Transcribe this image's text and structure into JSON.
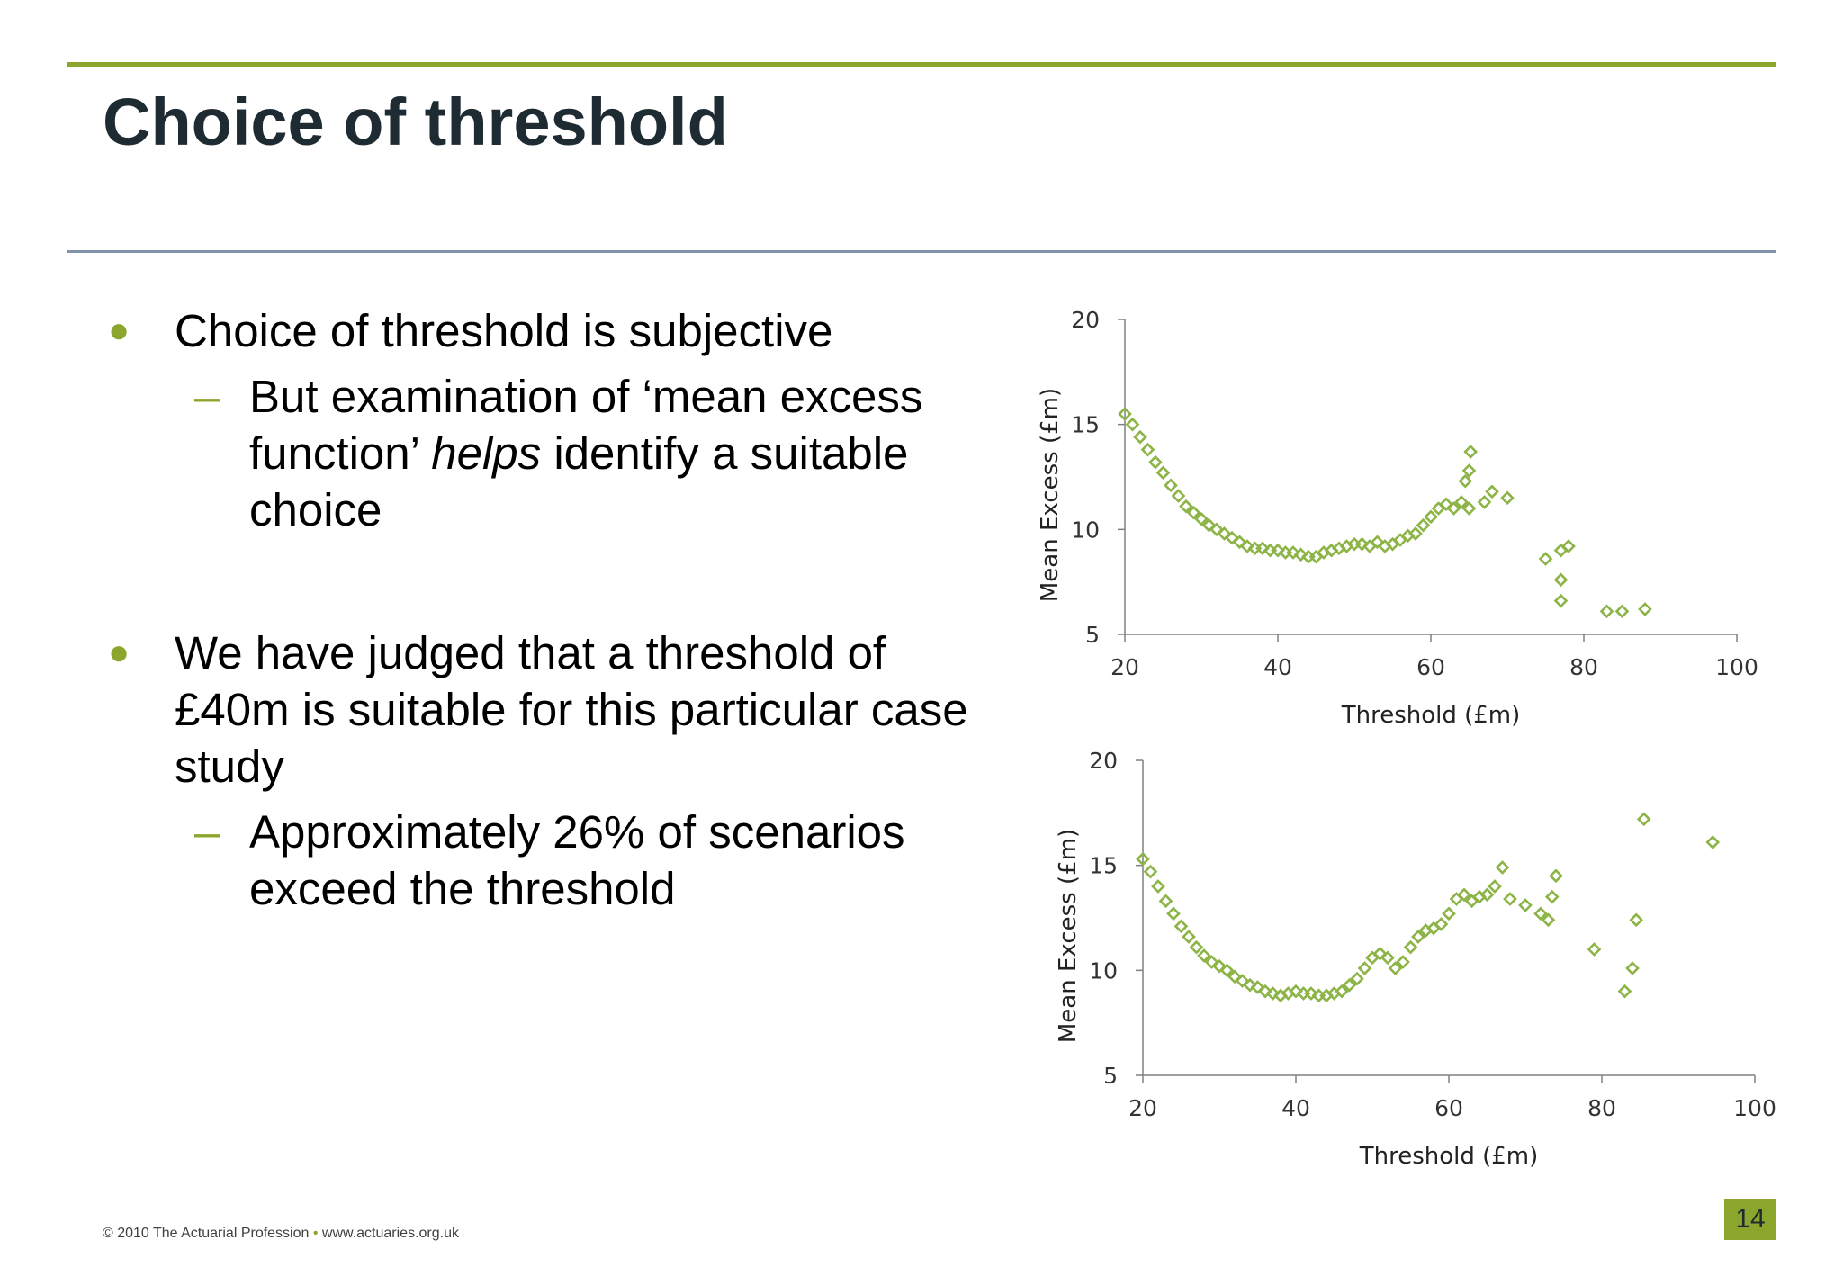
{
  "slide": {
    "title": "Choice of threshold",
    "bullets": [
      {
        "text": "Choice of threshold is subjective",
        "sub_parts": [
          "But examination of ‘mean excess function’ ",
          "helps",
          " identify a suitable choice"
        ]
      },
      {
        "text": "We have judged that a threshold of £40m is suitable for this particular case study",
        "sub": "Approximately 26% of scenarios exceed the threshold"
      }
    ],
    "footer_left": "© 2010 The Actuarial Profession",
    "footer_sep": "•",
    "footer_right": "www.actuaries.org.uk",
    "page_number": "14",
    "accent_color": "#8ca62d",
    "marker_color": "#8cb446"
  },
  "chart_data": [
    {
      "type": "scatter",
      "title": "",
      "xlabel": "Threshold (£m)",
      "ylabel": "Mean Excess (£m)",
      "xlim": [
        20,
        100
      ],
      "ylim": [
        5,
        20
      ],
      "xticks": [
        20,
        40,
        60,
        80,
        100
      ],
      "yticks": [
        5,
        10,
        15,
        20
      ],
      "marker": "diamond-open",
      "grid": false,
      "series": [
        {
          "points": [
            [
              20,
              15.5
            ],
            [
              21,
              15.0
            ],
            [
              22,
              14.4
            ],
            [
              23,
              13.8
            ],
            [
              24,
              13.2
            ],
            [
              25,
              12.7
            ],
            [
              26,
              12.1
            ],
            [
              27,
              11.6
            ],
            [
              28,
              11.1
            ],
            [
              29,
              10.8
            ],
            [
              30,
              10.5
            ],
            [
              31,
              10.2
            ],
            [
              32,
              10.0
            ],
            [
              33,
              9.8
            ],
            [
              34,
              9.6
            ],
            [
              35,
              9.4
            ],
            [
              36,
              9.2
            ],
            [
              37,
              9.1
            ],
            [
              38,
              9.1
            ],
            [
              39,
              9.0
            ],
            [
              40,
              9.0
            ],
            [
              41,
              8.9
            ],
            [
              42,
              8.9
            ],
            [
              43,
              8.8
            ],
            [
              44,
              8.7
            ],
            [
              45,
              8.7
            ],
            [
              46,
              8.9
            ],
            [
              47,
              9.0
            ],
            [
              48,
              9.1
            ],
            [
              49,
              9.2
            ],
            [
              50,
              9.3
            ],
            [
              51,
              9.3
            ],
            [
              52,
              9.2
            ],
            [
              53,
              9.4
            ],
            [
              54,
              9.2
            ],
            [
              55,
              9.3
            ],
            [
              56,
              9.5
            ],
            [
              57,
              9.7
            ],
            [
              58,
              9.8
            ],
            [
              59,
              10.2
            ],
            [
              60,
              10.6
            ],
            [
              61,
              11.0
            ],
            [
              62,
              11.2
            ],
            [
              63,
              11.0
            ],
            [
              64,
              11.3
            ],
            [
              65,
              11.0
            ],
            [
              64.5,
              12.3
            ],
            [
              65,
              12.8
            ],
            [
              65.2,
              13.7
            ],
            [
              67,
              11.3
            ],
            [
              68,
              11.8
            ],
            [
              70,
              11.5
            ],
            [
              75,
              8.6
            ],
            [
              77,
              9.0
            ],
            [
              78,
              9.2
            ],
            [
              77,
              7.6
            ],
            [
              77,
              6.6
            ],
            [
              83,
              6.1
            ],
            [
              85,
              6.1
            ],
            [
              88,
              6.2
            ]
          ]
        }
      ]
    },
    {
      "type": "scatter",
      "title": "",
      "xlabel": "Threshold (£m)",
      "ylabel": "Mean Excess (£m)",
      "xlim": [
        20,
        100
      ],
      "ylim": [
        5,
        20
      ],
      "xticks": [
        20,
        40,
        60,
        80,
        100
      ],
      "yticks": [
        5,
        10,
        15,
        20
      ],
      "marker": "diamond-open",
      "grid": false,
      "series": [
        {
          "points": [
            [
              20,
              15.3
            ],
            [
              21,
              14.7
            ],
            [
              22,
              14.0
            ],
            [
              23,
              13.3
            ],
            [
              24,
              12.7
            ],
            [
              25,
              12.1
            ],
            [
              26,
              11.6
            ],
            [
              27,
              11.1
            ],
            [
              28,
              10.7
            ],
            [
              29,
              10.4
            ],
            [
              30,
              10.2
            ],
            [
              31,
              10.0
            ],
            [
              32,
              9.7
            ],
            [
              33,
              9.5
            ],
            [
              34,
              9.3
            ],
            [
              35,
              9.2
            ],
            [
              36,
              9.0
            ],
            [
              37,
              8.9
            ],
            [
              38,
              8.8
            ],
            [
              39,
              8.9
            ],
            [
              40,
              9.0
            ],
            [
              41,
              8.9
            ],
            [
              42,
              8.9
            ],
            [
              43,
              8.8
            ],
            [
              44,
              8.8
            ],
            [
              45,
              8.9
            ],
            [
              46,
              9.0
            ],
            [
              47,
              9.3
            ],
            [
              48,
              9.6
            ],
            [
              49,
              10.1
            ],
            [
              50,
              10.6
            ],
            [
              51,
              10.8
            ],
            [
              52,
              10.6
            ],
            [
              53,
              10.1
            ],
            [
              54,
              10.4
            ],
            [
              55,
              11.1
            ],
            [
              56,
              11.6
            ],
            [
              57,
              11.9
            ],
            [
              58,
              12.0
            ],
            [
              59,
              12.2
            ],
            [
              60,
              12.7
            ],
            [
              61,
              13.4
            ],
            [
              62,
              13.6
            ],
            [
              63,
              13.3
            ],
            [
              64,
              13.5
            ],
            [
              65,
              13.6
            ],
            [
              66,
              14.0
            ],
            [
              67,
              14.9
            ],
            [
              68,
              13.4
            ],
            [
              70,
              13.1
            ],
            [
              72,
              12.7
            ],
            [
              73,
              12.4
            ],
            [
              74,
              14.5
            ],
            [
              73.5,
              13.5
            ],
            [
              79,
              11.0
            ],
            [
              83,
              9.0
            ],
            [
              84,
              10.1
            ],
            [
              84.5,
              12.4
            ],
            [
              85.5,
              17.2
            ],
            [
              94.5,
              16.1
            ]
          ]
        }
      ]
    }
  ]
}
